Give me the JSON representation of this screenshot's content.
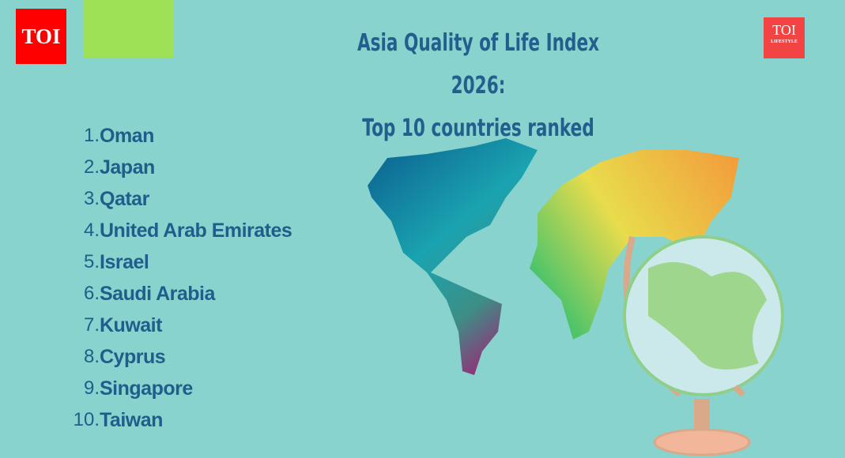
{
  "logos": {
    "toi": "TOI",
    "toi_lifestyle_top": "TOI",
    "toi_lifestyle_bottom": "LIFESTYLE"
  },
  "title": {
    "line1": "Asia Quality of Life Index 2026:",
    "line2": "Top 10 countries ranked"
  },
  "ranking": [
    {
      "rank": "1.",
      "country": "Oman"
    },
    {
      "rank": "2.",
      "country": "Japan"
    },
    {
      "rank": "3.",
      "country": "Qatar"
    },
    {
      "rank": "4.",
      "country": "United Arab Emirates"
    },
    {
      "rank": "5.",
      "country": "Israel"
    },
    {
      "rank": "6.",
      "country": "Saudi Arabia"
    },
    {
      "rank": "7.",
      "country": "Kuwait"
    },
    {
      "rank": "8.",
      "country": "Cyprus"
    },
    {
      "rank": "9.",
      "country": "Singapore"
    },
    {
      "rank": "10.",
      "country": "Taiwan"
    }
  ],
  "colors": {
    "background": "#89d3cf",
    "text": "#1f5d8a",
    "toi_red": "#ff0000",
    "accent_green": "#9ee156"
  }
}
